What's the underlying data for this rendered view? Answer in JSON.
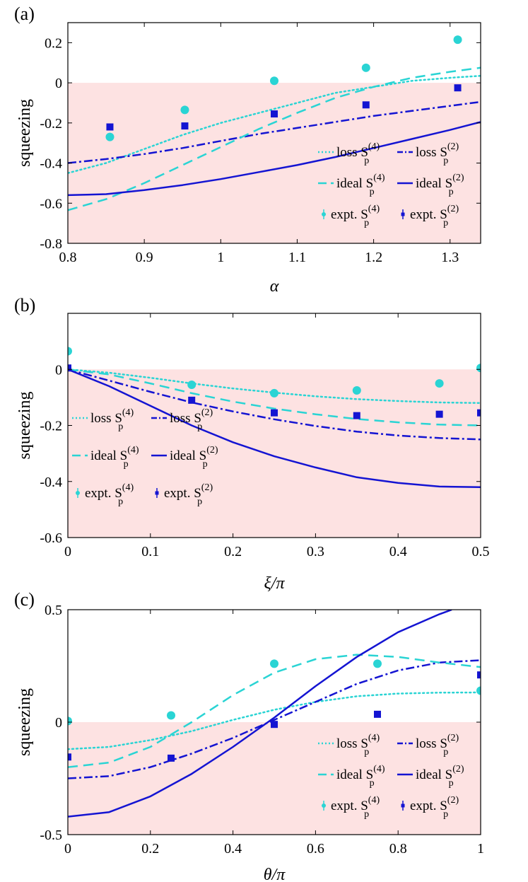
{
  "colors": {
    "cyan": "#2ad4d4",
    "blue": "#1414d2",
    "shade": "#fde2e2"
  },
  "legend_labels": {
    "loss4": "loss S",
    "loss2": "loss S",
    "ideal4": "ideal S",
    "ideal2": "ideal S",
    "expt4": "expt. S",
    "expt2": "expt. S",
    "sup4": "(4)",
    "sup2": "(2)",
    "sub": "p"
  },
  "chart_data": [
    {
      "type": "line",
      "panel_label": "(a)",
      "xlabel": "α",
      "ylabel": "squeezing",
      "xlim": [
        0.8,
        1.34
      ],
      "ylim": [
        -0.8,
        0.3
      ],
      "xticks": [
        0.8,
        0.9,
        1,
        1.1,
        1.2,
        1.3
      ],
      "yticks": [
        -0.8,
        -0.6,
        -0.4,
        -0.2,
        0,
        0.2
      ],
      "xtick_labels": [
        "0.8",
        "0.9",
        "1",
        "1.1",
        "1.2",
        "1.3"
      ],
      "ytick_labels": [
        "-0.8",
        "-0.6",
        "-0.4",
        "-0.2",
        "0",
        "0.2"
      ],
      "legend_position": "bottom-right",
      "series": [
        {
          "name": "loss S_p^(4)",
          "style": "dotted",
          "color": "cyan",
          "x": [
            0.8,
            0.85,
            0.9,
            0.95,
            1.0,
            1.05,
            1.1,
            1.15,
            1.2,
            1.25,
            1.3,
            1.34
          ],
          "y": [
            -0.45,
            -0.4,
            -0.33,
            -0.26,
            -0.2,
            -0.15,
            -0.1,
            -0.05,
            -0.02,
            0.01,
            0.025,
            0.035
          ]
        },
        {
          "name": "loss S_p^(2)",
          "style": "dashdot",
          "color": "blue",
          "x": [
            0.8,
            0.85,
            0.9,
            0.95,
            1.0,
            1.05,
            1.1,
            1.15,
            1.2,
            1.25,
            1.3,
            1.34
          ],
          "y": [
            -0.4,
            -0.38,
            -0.355,
            -0.325,
            -0.29,
            -0.255,
            -0.225,
            -0.195,
            -0.165,
            -0.14,
            -0.115,
            -0.095
          ]
        },
        {
          "name": "ideal S_p^(4)",
          "style": "dashed",
          "color": "cyan",
          "x": [
            0.8,
            0.85,
            0.9,
            0.95,
            1.0,
            1.05,
            1.1,
            1.15,
            1.2,
            1.25,
            1.3,
            1.34
          ],
          "y": [
            -0.635,
            -0.58,
            -0.5,
            -0.41,
            -0.32,
            -0.23,
            -0.15,
            -0.075,
            -0.02,
            0.025,
            0.055,
            0.075
          ]
        },
        {
          "name": "ideal S_p^(2)",
          "style": "solid",
          "color": "blue",
          "x": [
            0.8,
            0.85,
            0.9,
            0.95,
            1.0,
            1.05,
            1.1,
            1.15,
            1.2,
            1.25,
            1.3,
            1.34
          ],
          "y": [
            -0.56,
            -0.555,
            -0.535,
            -0.51,
            -0.48,
            -0.445,
            -0.41,
            -0.37,
            -0.325,
            -0.28,
            -0.235,
            -0.195
          ]
        },
        {
          "name": "expt. S_p^(4)",
          "style": "circle",
          "color": "cyan",
          "x": [
            0.855,
            0.953,
            1.07,
            1.19,
            1.31
          ],
          "y": [
            -0.27,
            -0.135,
            0.01,
            0.075,
            0.215
          ]
        },
        {
          "name": "expt. S_p^(2)",
          "style": "square",
          "color": "blue",
          "x": [
            0.855,
            0.953,
            1.07,
            1.19,
            1.31
          ],
          "y": [
            -0.22,
            -0.215,
            -0.155,
            -0.11,
            -0.025
          ]
        }
      ]
    },
    {
      "type": "line",
      "panel_label": "(b)",
      "xlabel": "ξ/π",
      "ylabel": "squeezing",
      "xlim": [
        0,
        0.5
      ],
      "ylim": [
        -0.6,
        0.2
      ],
      "xticks": [
        0,
        0.1,
        0.2,
        0.3,
        0.4,
        0.5
      ],
      "yticks": [
        -0.6,
        -0.4,
        -0.2,
        0
      ],
      "xtick_labels": [
        "0",
        "0.1",
        "0.2",
        "0.3",
        "0.4",
        "0.5"
      ],
      "ytick_labels": [
        "-0.6",
        "-0.4",
        "-0.2",
        "0"
      ],
      "legend_position": "bottom-left",
      "series": [
        {
          "name": "loss S_p^(4)",
          "style": "dotted",
          "color": "cyan",
          "x": [
            0,
            0.05,
            0.1,
            0.15,
            0.2,
            0.25,
            0.3,
            0.35,
            0.4,
            0.45,
            0.5
          ],
          "y": [
            0,
            -0.012,
            -0.03,
            -0.05,
            -0.068,
            -0.083,
            -0.096,
            -0.106,
            -0.113,
            -0.118,
            -0.12
          ]
        },
        {
          "name": "loss S_p^(2)",
          "style": "dashdot",
          "color": "blue",
          "x": [
            0,
            0.05,
            0.1,
            0.15,
            0.2,
            0.25,
            0.3,
            0.35,
            0.4,
            0.45,
            0.5
          ],
          "y": [
            0,
            -0.04,
            -0.08,
            -0.118,
            -0.15,
            -0.178,
            -0.202,
            -0.222,
            -0.236,
            -0.245,
            -0.25
          ]
        },
        {
          "name": "ideal S_p^(4)",
          "style": "dashed",
          "color": "cyan",
          "x": [
            0,
            0.05,
            0.1,
            0.15,
            0.2,
            0.25,
            0.3,
            0.35,
            0.4,
            0.45,
            0.5
          ],
          "y": [
            0,
            -0.018,
            -0.05,
            -0.085,
            -0.115,
            -0.14,
            -0.16,
            -0.177,
            -0.189,
            -0.197,
            -0.2
          ]
        },
        {
          "name": "ideal S_p^(2)",
          "style": "solid",
          "color": "blue",
          "x": [
            0,
            0.05,
            0.1,
            0.15,
            0.2,
            0.25,
            0.3,
            0.35,
            0.4,
            0.45,
            0.5
          ],
          "y": [
            0,
            -0.06,
            -0.13,
            -0.2,
            -0.26,
            -0.31,
            -0.35,
            -0.385,
            -0.405,
            -0.418,
            -0.42
          ]
        },
        {
          "name": "expt. S_p^(4)",
          "style": "circle",
          "color": "cyan",
          "x": [
            0,
            0.15,
            0.25,
            0.35,
            0.45,
            0.5
          ],
          "y": [
            0.065,
            -0.055,
            -0.085,
            -0.075,
            -0.05,
            0.005
          ]
        },
        {
          "name": "expt. S_p^(2)",
          "style": "square",
          "color": "blue",
          "x": [
            0,
            0.15,
            0.25,
            0.35,
            0.45,
            0.5
          ],
          "y": [
            0.005,
            -0.11,
            -0.155,
            -0.165,
            -0.16,
            -0.155
          ]
        }
      ]
    },
    {
      "type": "line",
      "panel_label": "(c)",
      "xlabel": "θ/π",
      "ylabel": "squeezing",
      "xlim": [
        0,
        1
      ],
      "ylim": [
        -0.5,
        0.5
      ],
      "xticks": [
        0,
        0.2,
        0.4,
        0.6,
        0.8,
        1
      ],
      "yticks": [
        -0.5,
        0,
        0.5
      ],
      "xtick_labels": [
        "0",
        "0.2",
        "0.4",
        "0.6",
        "0.8",
        "1"
      ],
      "ytick_labels": [
        "-0.5",
        "0",
        "0.5"
      ],
      "legend_position": "bottom-right",
      "series": [
        {
          "name": "loss S_p^(4)",
          "style": "dotted",
          "color": "cyan",
          "x": [
            0,
            0.1,
            0.2,
            0.3,
            0.4,
            0.5,
            0.6,
            0.7,
            0.8,
            0.9,
            1.0
          ],
          "y": [
            -0.12,
            -0.11,
            -0.08,
            -0.04,
            0.01,
            0.055,
            0.09,
            0.115,
            0.127,
            0.131,
            0.132
          ]
        },
        {
          "name": "loss S_p^(2)",
          "style": "dashdot",
          "color": "blue",
          "x": [
            0,
            0.1,
            0.2,
            0.3,
            0.4,
            0.5,
            0.6,
            0.7,
            0.8,
            0.9,
            1.0
          ],
          "y": [
            -0.25,
            -0.24,
            -0.2,
            -0.14,
            -0.07,
            0.01,
            0.09,
            0.17,
            0.23,
            0.265,
            0.275
          ]
        },
        {
          "name": "ideal S_p^(4)",
          "style": "dashed",
          "color": "cyan",
          "x": [
            0,
            0.1,
            0.2,
            0.3,
            0.4,
            0.5,
            0.6,
            0.7,
            0.8,
            0.9,
            1.0
          ],
          "y": [
            -0.2,
            -0.18,
            -0.11,
            0,
            0.12,
            0.22,
            0.28,
            0.3,
            0.29,
            0.265,
            0.245
          ]
        },
        {
          "name": "ideal S_p^(2)",
          "style": "solid",
          "color": "blue",
          "x": [
            0,
            0.1,
            0.2,
            0.3,
            0.4,
            0.5,
            0.6,
            0.7,
            0.8,
            0.9,
            0.93
          ],
          "y": [
            -0.42,
            -0.4,
            -0.33,
            -0.23,
            -0.11,
            0.02,
            0.16,
            0.29,
            0.4,
            0.48,
            0.5
          ]
        },
        {
          "name": "expt. S_p^(4)",
          "style": "circle",
          "color": "cyan",
          "x": [
            0,
            0.25,
            0.5,
            0.75,
            1.0
          ],
          "y": [
            0.005,
            0.03,
            0.26,
            0.26,
            0.14
          ]
        },
        {
          "name": "expt. S_p^(2)",
          "style": "square",
          "color": "blue",
          "x": [
            0,
            0.25,
            0.5,
            0.75,
            1.0
          ],
          "y": [
            -0.155,
            -0.16,
            -0.01,
            0.035,
            0.21
          ]
        }
      ]
    }
  ]
}
